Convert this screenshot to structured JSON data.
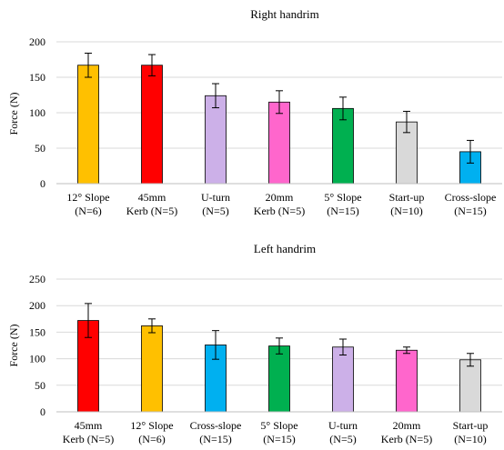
{
  "chart_data": [
    {
      "type": "bar",
      "title": "Right handrim",
      "ylabel": "Force (N)",
      "xlabel": "",
      "ylim": [
        0,
        200
      ],
      "yticks": [
        0,
        50,
        100,
        150,
        200
      ],
      "grid": true,
      "categories": [
        {
          "line1": "12° Slope",
          "line2": "(N=6)"
        },
        {
          "line1": "45mm",
          "line2": "Kerb (N=5)"
        },
        {
          "line1": "U-turn",
          "line2": "(N=5)"
        },
        {
          "line1": "20mm",
          "line2": "Kerb (N=5)"
        },
        {
          "line1": "5° Slope",
          "line2": "(N=15)"
        },
        {
          "line1": "Start-up",
          "line2": "(N=10)"
        },
        {
          "line1": "Cross-slope",
          "line2": "(N=15)"
        }
      ],
      "values": [
        167,
        167,
        124,
        115,
        106,
        87,
        45
      ],
      "errors": [
        17,
        15,
        17,
        16,
        16,
        15,
        16
      ],
      "colors": [
        "#FFC000",
        "#FF0000",
        "#CCB0E8",
        "#FF66CC",
        "#00B050",
        "#D9D9D9",
        "#00B0F0"
      ]
    },
    {
      "type": "bar",
      "title": "Left handrim",
      "ylabel": "Force (N)",
      "xlabel": "",
      "ylim": [
        0,
        250
      ],
      "yticks": [
        0,
        50,
        100,
        150,
        200,
        250
      ],
      "grid": true,
      "categories": [
        {
          "line1": "45mm",
          "line2": "Kerb (N=5)"
        },
        {
          "line1": "12° Slope",
          "line2": "(N=6)"
        },
        {
          "line1": "Cross-slope",
          "line2": "(N=15)"
        },
        {
          "line1": "5° Slope",
          "line2": "(N=15)"
        },
        {
          "line1": "U-turn",
          "line2": "(N=5)"
        },
        {
          "line1": "20mm",
          "line2": "Kerb (N=5)"
        },
        {
          "line1": "Start-up",
          "line2": "(N=10)"
        }
      ],
      "values": [
        172,
        162,
        126,
        124,
        122,
        116,
        98
      ],
      "errors": [
        32,
        13,
        27,
        15,
        15,
        6,
        12
      ],
      "colors": [
        "#FF0000",
        "#FFC000",
        "#00B0F0",
        "#00B050",
        "#CCB0E8",
        "#FF66CC",
        "#D9D9D9"
      ]
    }
  ]
}
